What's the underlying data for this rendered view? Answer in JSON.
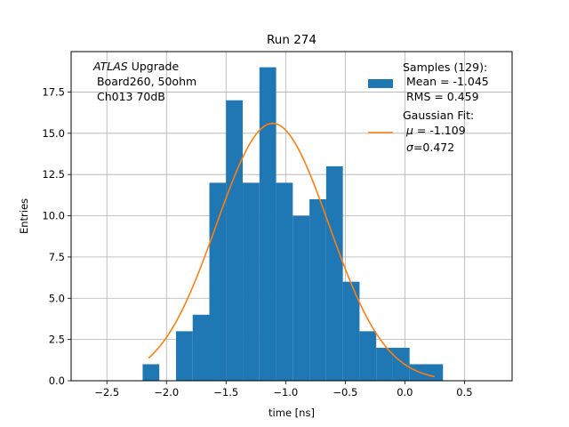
{
  "chart_data": {
    "type": "bar",
    "title": "Run 274",
    "xlabel": "time [ns]",
    "ylabel": "Entries",
    "xlim": [
      -2.8,
      0.9
    ],
    "ylim": [
      0,
      19.95
    ],
    "xticks": [
      -2.5,
      -2.0,
      -1.5,
      -1.0,
      -0.5,
      0.0,
      0.5
    ],
    "xtick_labels": [
      "−2.5",
      "−2.0",
      "−1.5",
      "−1.0",
      "−0.5",
      "0.0",
      "0.5"
    ],
    "yticks": [
      0.0,
      2.5,
      5.0,
      7.5,
      10.0,
      12.5,
      15.0,
      17.5
    ],
    "ytick_labels": [
      "0.0",
      "2.5",
      "5.0",
      "7.5",
      "10.0",
      "12.5",
      "15.0",
      "17.5"
    ],
    "grid": true,
    "bin_edges": [
      -2.2,
      -2.06,
      -1.92,
      -1.78,
      -1.64,
      -1.5,
      -1.36,
      -1.22,
      -1.08,
      -0.94,
      -0.8,
      -0.66,
      -0.52,
      -0.38,
      -0.24,
      -0.1,
      0.04,
      0.18,
      0.32
    ],
    "series": [
      {
        "name": "Samples",
        "kind": "histogram",
        "color": "#1f77b4",
        "values": [
          1,
          0,
          3,
          4,
          12,
          17,
          12,
          19,
          12,
          10,
          11,
          13,
          6,
          3,
          2,
          2,
          1,
          1
        ]
      },
      {
        "name": "Gaussian Fit",
        "kind": "line",
        "color": "#ff7f0e",
        "x_range": [
          -2.15,
          0.25
        ],
        "mu": -1.109,
        "sigma": 0.472,
        "peak": 15.6
      }
    ],
    "annotation": {
      "line1_italic": "ATLAS",
      "line1_rest": " Upgrade",
      "line2": " Board260, 50ohm",
      "line3": " Ch013 70dB"
    },
    "legend": {
      "position": "top-right",
      "samples": {
        "line1": "Samples (129):",
        "line2": " Mean = -1.045",
        "line3": " RMS = 0.459"
      },
      "fit": {
        "line1": "Gaussian Fit:",
        "mu_symbol": "μ",
        "mu_text": " = -1.109",
        "sigma_symbol": "σ",
        "sigma_text": "=0.472"
      }
    }
  }
}
